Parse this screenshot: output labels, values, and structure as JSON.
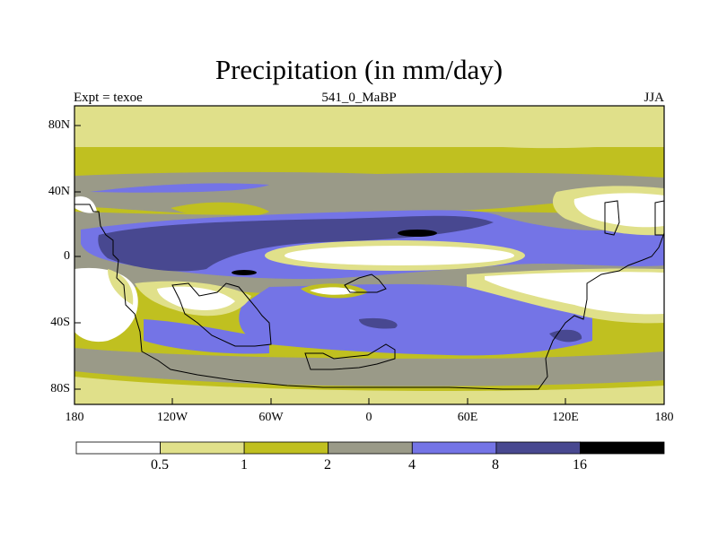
{
  "title": "Precipitation (in mm/day)",
  "subtitle": {
    "left": "Expt = texoe",
    "center": "541_0_MaBP",
    "right": "JJA"
  },
  "lat_ticks": [
    "80N",
    "40N",
    "0",
    "40S",
    "80S"
  ],
  "lon_ticks": [
    "180",
    "120W",
    "60W",
    "0",
    "60E",
    "120E",
    "180"
  ],
  "colorbar": {
    "labels": [
      "0.5",
      "1",
      "2",
      "4",
      "8",
      "16"
    ],
    "colors": [
      "#ffffff",
      "#e0e08a",
      "#c0c020",
      "#9a9a88",
      "#7474e6",
      "#484890",
      "#000000"
    ]
  },
  "colors": {
    "frame": "#000000",
    "coast": "#000000"
  }
}
